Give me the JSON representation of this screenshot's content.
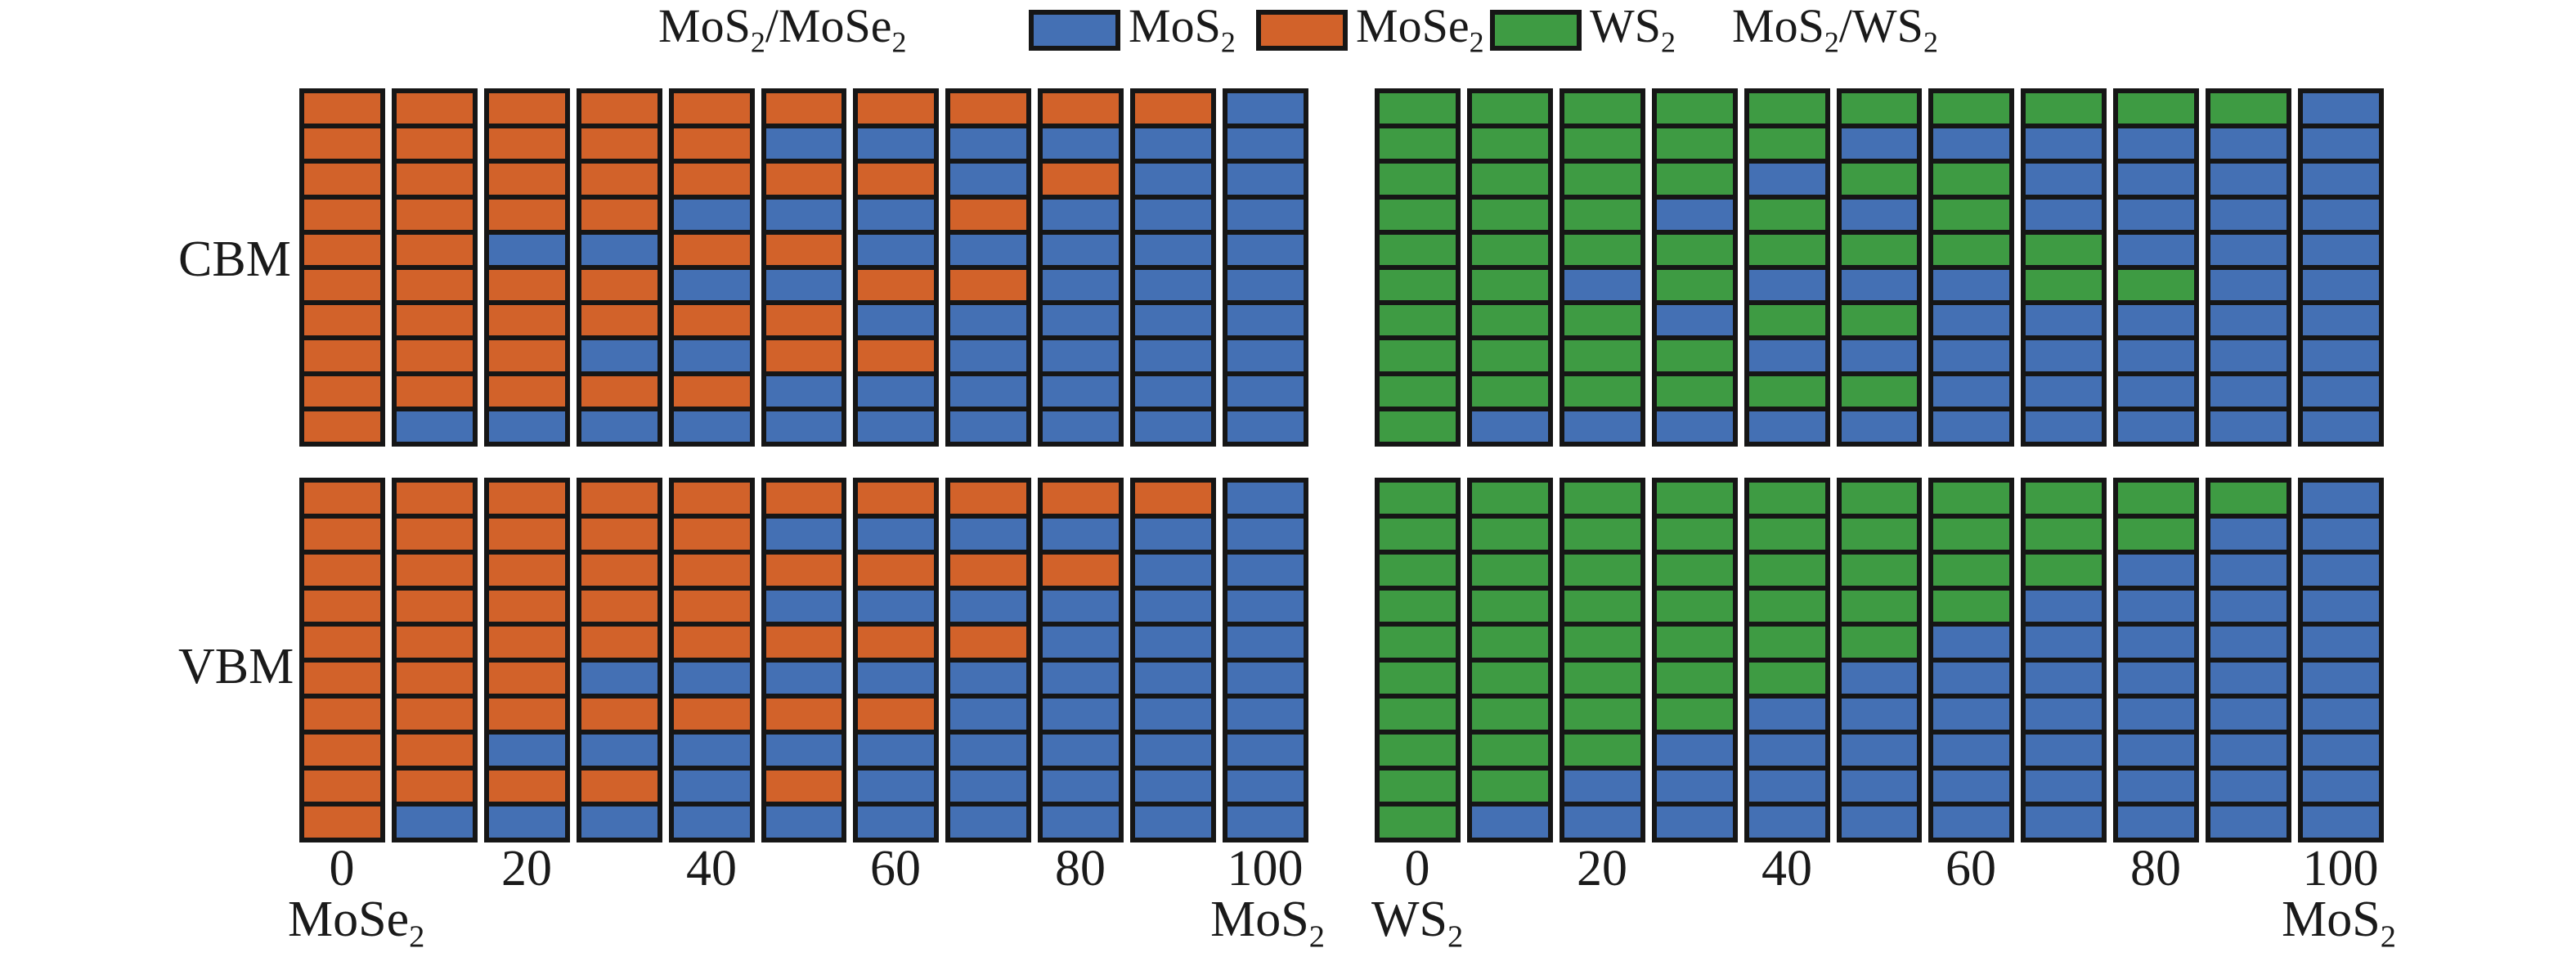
{
  "figure": {
    "background": "#ffffff",
    "legend": {
      "left_title": "MoS2/MoSe2",
      "right_title": "MoS2/WS2",
      "items": [
        {
          "label": "MoS2",
          "color": "#4470B4"
        },
        {
          "label": "MoSe2",
          "color": "#D2622A"
        },
        {
          "label": "WS2",
          "color": "#3E9B43"
        }
      ]
    },
    "row_labels": [
      "CBM",
      "VBM"
    ],
    "x_axis": {
      "ticks": [
        "0",
        "20",
        "40",
        "60",
        "80",
        "100"
      ],
      "left_panel_end_labels": [
        "MoSe2",
        "MoS2"
      ],
      "right_panel_end_labels": [
        "WS2",
        "MoS2"
      ]
    }
  },
  "chart_data": {
    "type": "heatmap",
    "title": "",
    "x_values": [
      0,
      10,
      20,
      30,
      40,
      50,
      60,
      70,
      80,
      90,
      100
    ],
    "rows_per_column": 10,
    "grid": "cells outlined in black, columns separated by white gaps",
    "legend_position": "top center",
    "species_names": {
      "M": "MoS2",
      "E": "MoSe2",
      "W": "WS2"
    },
    "species_colors": {
      "M": "#4470B4",
      "E": "#D2622A",
      "W": "#3E9B43"
    },
    "cell_border_color": "#161616",
    "panels": [
      {
        "name": "CBM MoS2/MoSe2",
        "row_label": "CBM",
        "x_start_species": "MoSe2",
        "x_end_species": "MoS2",
        "columns_top_to_bottom": [
          "EEEEEEEEEE",
          "EEEEEEEEEM",
          "EEEEMEEEEM",
          "EEEEMEEMEM",
          "EEEMEMEMEM",
          "EMEMEMEEMM",
          "EMEMMEMEMM",
          "EMMEMEMMMM",
          "EMEMMMMMMM",
          "EMMMMMMMMM",
          "MMMMMMMMMM"
        ]
      },
      {
        "name": "CBM MoS2/WS2",
        "row_label": "CBM",
        "x_start_species": "WS2",
        "x_end_species": "MoS2",
        "columns_top_to_bottom": [
          "WWWWWWWWWW",
          "WWWWWWWWWM",
          "WWWWWMWWWM",
          "WWWMWWMWWM",
          "WWMWWMWMWM",
          "WMWMWMWMWM",
          "WMWWWMMMMM",
          "WMMMWWMMMM",
          "WMMMMWMMMM",
          "WMMMMMMMMM",
          "MMMMMMMMMM"
        ]
      },
      {
        "name": "VBM MoS2/MoSe2",
        "row_label": "VBM",
        "x_start_species": "MoSe2",
        "x_end_species": "MoS2",
        "columns_top_to_bottom": [
          "EEEEEEEEEE",
          "EEEEEEEEEM",
          "EEEEEEEMEM",
          "EEEEEMEMEM",
          "EEEEEMEMMM",
          "EMEMEMEMEM",
          "EMEMEMEMMM",
          "EMEMEMMMMM",
          "EMEMMMMMMM",
          "EMMMMMMMMM",
          "MMMMMMMMMM"
        ]
      },
      {
        "name": "VBM MoS2/WS2",
        "row_label": "VBM",
        "x_start_species": "WS2",
        "x_end_species": "MoS2",
        "columns_top_to_bottom": [
          "WWWWWWWWWW",
          "WWWWWWWWWM",
          "WWWWWWWWMM",
          "WWWWWWWMMM",
          "WWWWWWMMMM",
          "WWWWWMMMMM",
          "WWWWMMMMMM",
          "WWWMMMMMMM",
          "WWMMMMMMMM",
          "WMMMMMMMMM",
          "MMMMMMMMMM"
        ]
      }
    ]
  }
}
